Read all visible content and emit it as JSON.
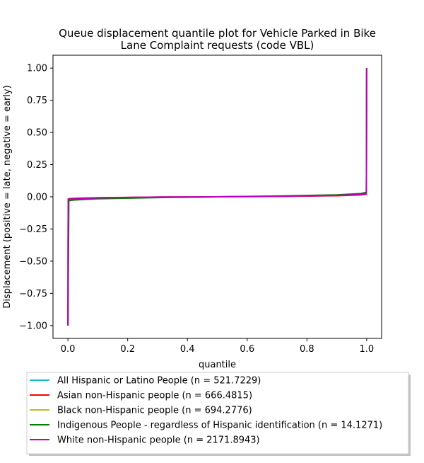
{
  "chart_data": {
    "type": "line",
    "title_lines": [
      "Queue displacement quantile plot for Vehicle Parked in Bike",
      "Lane Complaint  requests (code VBL)"
    ],
    "xlabel": "quantile",
    "ylabel": "Displacement (positive = late, negative = early)",
    "xlim": [
      -0.05,
      1.05
    ],
    "ylim": [
      -1.1,
      1.1
    ],
    "xticks": [
      0.0,
      0.2,
      0.4,
      0.6,
      0.8,
      1.0
    ],
    "xtick_labels": [
      "0.0",
      "0.2",
      "0.4",
      "0.6",
      "0.8",
      "1.0"
    ],
    "yticks": [
      1.0,
      0.75,
      0.5,
      0.25,
      0.0,
      -0.25,
      -0.5,
      -0.75,
      -1.0
    ],
    "ytick_labels": [
      "1.00",
      "0.75",
      "0.50",
      "0.25",
      "0.00",
      "−0.25",
      "−0.50",
      "−0.75",
      "−1.00"
    ],
    "grid": false,
    "legend_position": "below plot",
    "series": [
      {
        "name": "All Hispanic or Latino People (n = 521.7229)",
        "color": "#17becf",
        "points": [
          [
            0,
            -1.0
          ],
          [
            0.001,
            -0.02
          ],
          [
            0.02,
            -0.015
          ],
          [
            0.1,
            -0.008
          ],
          [
            0.3,
            -0.002
          ],
          [
            0.5,
            0.0
          ],
          [
            0.7,
            0.004
          ],
          [
            0.9,
            0.01
          ],
          [
            0.98,
            0.02
          ],
          [
            0.999,
            0.025
          ],
          [
            1.0,
            1.0
          ]
        ]
      },
      {
        "name": "Asian non-Hispanic people (n = 666.4815)",
        "color": "#ff0000",
        "points": [
          [
            0,
            -1.0
          ],
          [
            0.001,
            -0.015
          ],
          [
            0.02,
            -0.012
          ],
          [
            0.1,
            -0.007
          ],
          [
            0.3,
            -0.002
          ],
          [
            0.5,
            0.0
          ],
          [
            0.7,
            0.003
          ],
          [
            0.9,
            0.008
          ],
          [
            0.98,
            0.015
          ],
          [
            0.999,
            0.02
          ],
          [
            1.0,
            1.0
          ]
        ]
      },
      {
        "name": "Black non-Hispanic people (n = 694.2776)",
        "color": "#bcbd22",
        "points": [
          [
            0,
            -1.0
          ],
          [
            0.001,
            -0.02
          ],
          [
            0.02,
            -0.016
          ],
          [
            0.1,
            -0.009
          ],
          [
            0.3,
            -0.003
          ],
          [
            0.5,
            0.0
          ],
          [
            0.7,
            0.004
          ],
          [
            0.9,
            0.011
          ],
          [
            0.98,
            0.02
          ],
          [
            0.999,
            0.025
          ],
          [
            1.0,
            1.0
          ]
        ]
      },
      {
        "name": "Indigenous People - regardless of Hispanic identification (n = 14.1271)",
        "color": "#008000",
        "points": [
          [
            0,
            -1.0
          ],
          [
            0.003,
            -0.03
          ],
          [
            0.02,
            -0.025
          ],
          [
            0.1,
            -0.015
          ],
          [
            0.3,
            -0.006
          ],
          [
            0.5,
            0.0
          ],
          [
            0.7,
            0.006
          ],
          [
            0.9,
            0.015
          ],
          [
            0.98,
            0.025
          ],
          [
            0.999,
            0.035
          ],
          [
            1.0,
            1.0
          ]
        ]
      },
      {
        "name": "White non-Hispanic people (n = 2171.8943)",
        "color": "#bf00bf",
        "points": [
          [
            0,
            -1.0
          ],
          [
            0.001,
            -0.02
          ],
          [
            0.02,
            -0.015
          ],
          [
            0.1,
            -0.008
          ],
          [
            0.3,
            -0.002
          ],
          [
            0.5,
            0.0
          ],
          [
            0.7,
            0.004
          ],
          [
            0.9,
            0.01
          ],
          [
            0.98,
            0.018
          ],
          [
            0.999,
            0.022
          ],
          [
            1.0,
            1.0
          ]
        ]
      }
    ]
  }
}
